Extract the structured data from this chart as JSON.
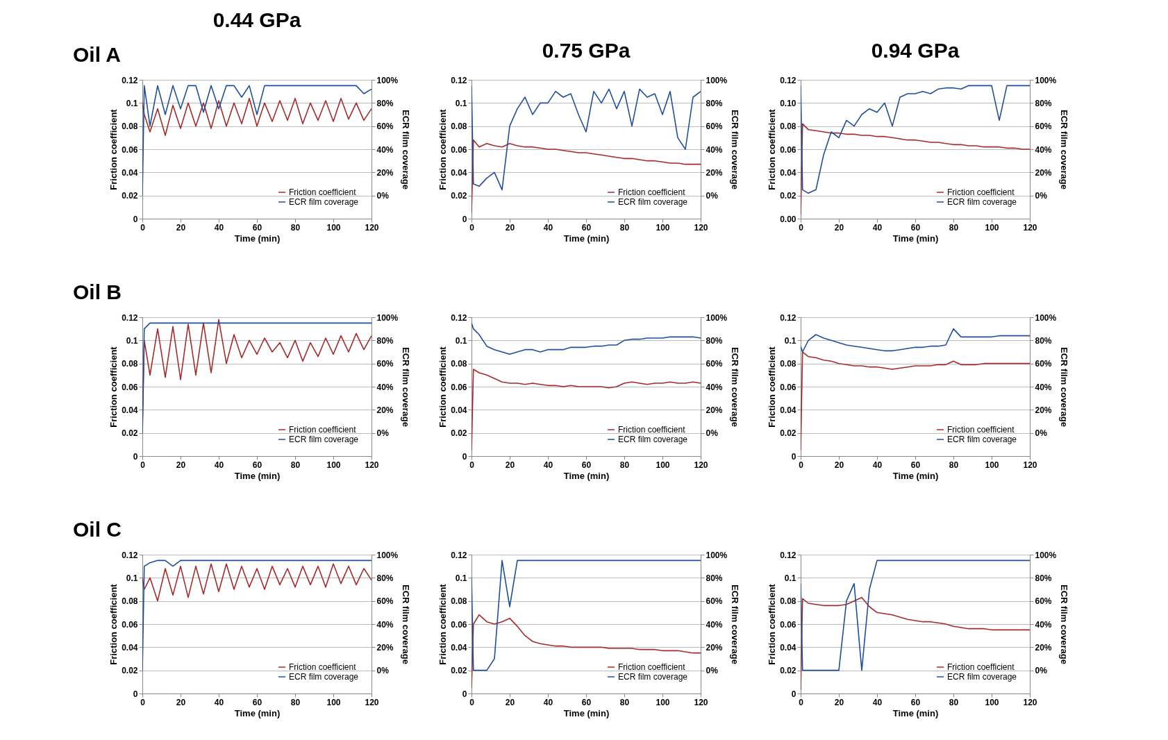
{
  "chart_data": [
    {
      "type": "line",
      "title": "0.44 GPa",
      "annotations": [
        "Oil A"
      ],
      "xlabel": "Time (min)",
      "ylabel": "Friction coefficient",
      "y2label": "ECR film coverage",
      "xlim": [
        0,
        120
      ],
      "xticks": [
        0,
        20,
        40,
        60,
        80,
        100,
        120
      ],
      "ylim": [
        0,
        0.12
      ],
      "yticks": [
        0,
        0.02,
        0.04,
        0.06,
        0.08,
        0.1,
        0.12
      ],
      "y2lim": [
        -20,
        100
      ],
      "y2ticks": [
        {
          "value": 0,
          "label": "0%"
        },
        {
          "value": 20,
          "label": "20%"
        },
        {
          "value": 40,
          "label": "40%"
        },
        {
          "value": 60,
          "label": "60%"
        },
        {
          "value": 80,
          "label": "80%"
        },
        {
          "value": 100,
          "label": "100%"
        }
      ],
      "grid": "y",
      "legend": "bottom right",
      "x": [
        0,
        1,
        4,
        8,
        12,
        16,
        20,
        24,
        28,
        32,
        36,
        40,
        44,
        48,
        52,
        56,
        60,
        64,
        68,
        72,
        76,
        80,
        84,
        88,
        92,
        96,
        100,
        104,
        108,
        112,
        116,
        120
      ],
      "series": [
        {
          "name": "Friction coefficient",
          "color": "#a52a2a",
          "values": [
            0.1,
            0.09,
            0.075,
            0.095,
            0.072,
            0.098,
            0.078,
            0.1,
            0.08,
            0.1,
            0.078,
            0.102,
            0.08,
            0.1,
            0.082,
            0.104,
            0.08,
            0.1,
            0.084,
            0.102,
            0.085,
            0.104,
            0.082,
            0.1,
            0.085,
            0.102,
            0.084,
            0.104,
            0.086,
            0.1,
            0.085,
            0.095
          ]
        },
        {
          "name": "ECR film coverage",
          "color": "#1f4e9c",
          "axis": "y2",
          "values": [
            0,
            95,
            60,
            95,
            70,
            95,
            75,
            95,
            95,
            72,
            95,
            75,
            95,
            95,
            85,
            95,
            70,
            95,
            95,
            95,
            95,
            95,
            95,
            95,
            95,
            95,
            95,
            95,
            95,
            95,
            88,
            92
          ]
        }
      ]
    },
    {
      "type": "line",
      "title": "0.75 GPa",
      "xlabel": "Time (min)",
      "ylabel": "Friction coefficient",
      "y2label": "ECR film coverage",
      "xlim": [
        0,
        120
      ],
      "xticks": [
        0,
        20,
        40,
        60,
        80,
        100,
        120
      ],
      "ylim": [
        0,
        0.12
      ],
      "yticks": [
        0,
        0.02,
        0.04,
        0.06,
        0.08,
        0.1,
        0.12
      ],
      "y2lim": [
        -20,
        100
      ],
      "y2ticks": [
        {
          "value": 0,
          "label": "0%"
        },
        {
          "value": 20,
          "label": "20%"
        },
        {
          "value": 40,
          "label": "40%"
        },
        {
          "value": 60,
          "label": "60%"
        },
        {
          "value": 80,
          "label": "80%"
        },
        {
          "value": 100,
          "label": "100%"
        }
      ],
      "grid": "y",
      "legend": "bottom right",
      "x": [
        0,
        1,
        4,
        8,
        12,
        16,
        20,
        24,
        28,
        32,
        36,
        40,
        44,
        48,
        52,
        56,
        60,
        64,
        68,
        72,
        76,
        80,
        84,
        88,
        92,
        96,
        100,
        104,
        108,
        112,
        116,
        120
      ],
      "series": [
        {
          "name": "Friction coefficient",
          "color": "#a52a2a",
          "values": [
            0.005,
            0.068,
            0.062,
            0.065,
            0.063,
            0.062,
            0.065,
            0.063,
            0.062,
            0.062,
            0.061,
            0.06,
            0.06,
            0.059,
            0.058,
            0.057,
            0.057,
            0.056,
            0.055,
            0.054,
            0.053,
            0.052,
            0.052,
            0.051,
            0.05,
            0.05,
            0.049,
            0.048,
            0.048,
            0.047,
            0.047,
            0.047
          ]
        },
        {
          "name": "ECR film coverage",
          "color": "#1f4e9c",
          "axis": "y2",
          "values": [
            95,
            10,
            8,
            15,
            20,
            5,
            60,
            75,
            85,
            70,
            80,
            80,
            90,
            85,
            88,
            70,
            55,
            90,
            80,
            92,
            75,
            90,
            60,
            92,
            85,
            88,
            70,
            90,
            50,
            40,
            85,
            90
          ]
        }
      ]
    },
    {
      "type": "line",
      "title": "0.94 GPa",
      "xlabel": "Time (min)",
      "ylabel": "Friction coefficient",
      "y2label": "ECR film coverage",
      "xlim": [
        0,
        120
      ],
      "xticks": [
        0,
        20,
        40,
        60,
        80,
        100,
        120
      ],
      "ylim": [
        0,
        0.12
      ],
      "yticks": [
        {
          "value": 0,
          "label": "0.00"
        },
        {
          "value": 0.02,
          "label": "0.02"
        },
        {
          "value": 0.04,
          "label": "0.04"
        },
        {
          "value": 0.06,
          "label": "0.06"
        },
        {
          "value": 0.08,
          "label": "0.08"
        },
        {
          "value": 0.1,
          "label": "0.10"
        },
        {
          "value": 0.12,
          "label": "0.12"
        }
      ],
      "y2lim": [
        -20,
        100
      ],
      "y2ticks": [
        {
          "value": 0,
          "label": "0%"
        },
        {
          "value": 20,
          "label": "20%"
        },
        {
          "value": 40,
          "label": "40%"
        },
        {
          "value": 60,
          "label": "60%"
        },
        {
          "value": 80,
          "label": "80%"
        },
        {
          "value": 100,
          "label": "100%"
        }
      ],
      "grid": "y",
      "legend": "bottom right",
      "x": [
        0,
        1,
        4,
        8,
        12,
        16,
        20,
        24,
        28,
        32,
        36,
        40,
        44,
        48,
        52,
        56,
        60,
        64,
        68,
        72,
        76,
        80,
        84,
        88,
        92,
        96,
        100,
        104,
        108,
        112,
        116,
        120
      ],
      "series": [
        {
          "name": "Friction coefficient",
          "color": "#a52a2a",
          "values": [
            0.003,
            0.082,
            0.077,
            0.076,
            0.075,
            0.074,
            0.074,
            0.073,
            0.073,
            0.072,
            0.072,
            0.071,
            0.071,
            0.07,
            0.069,
            0.068,
            0.068,
            0.067,
            0.066,
            0.066,
            0.065,
            0.064,
            0.064,
            0.063,
            0.063,
            0.062,
            0.062,
            0.062,
            0.061,
            0.061,
            0.06,
            0.06
          ]
        },
        {
          "name": "ECR film coverage",
          "color": "#1f4e9c",
          "axis": "y2",
          "values": [
            95,
            5,
            2,
            5,
            35,
            55,
            50,
            65,
            60,
            70,
            75,
            72,
            80,
            60,
            85,
            88,
            88,
            90,
            88,
            92,
            93,
            93,
            92,
            95,
            95,
            95,
            95,
            65,
            95,
            95,
            95,
            95
          ]
        }
      ]
    },
    {
      "type": "line",
      "annotations": [
        "Oil B"
      ],
      "xlabel": "Time (min)",
      "ylabel": "Friction coefficient",
      "y2label": "ECR film coverage",
      "xlim": [
        0,
        120
      ],
      "xticks": [
        0,
        20,
        40,
        60,
        80,
        100,
        120
      ],
      "ylim": [
        0,
        0.12
      ],
      "yticks": [
        0,
        0.02,
        0.04,
        0.06,
        0.08,
        0.1,
        0.12
      ],
      "y2lim": [
        -20,
        100
      ],
      "y2ticks": [
        {
          "value": 0,
          "label": "0%"
        },
        {
          "value": 20,
          "label": "20%"
        },
        {
          "value": 40,
          "label": "40%"
        },
        {
          "value": 60,
          "label": "60%"
        },
        {
          "value": 80,
          "label": "80%"
        },
        {
          "value": 100,
          "label": "100%"
        }
      ],
      "grid": "y",
      "legend": "bottom right",
      "x": [
        0,
        1,
        4,
        8,
        12,
        16,
        20,
        24,
        28,
        32,
        36,
        40,
        44,
        48,
        52,
        56,
        60,
        64,
        68,
        72,
        76,
        80,
        84,
        88,
        92,
        96,
        100,
        104,
        108,
        112,
        116,
        120
      ],
      "series": [
        {
          "name": "Friction coefficient",
          "color": "#a52a2a",
          "values": [
            0.02,
            0.1,
            0.07,
            0.11,
            0.068,
            0.112,
            0.066,
            0.114,
            0.07,
            0.115,
            0.072,
            0.118,
            0.08,
            0.105,
            0.085,
            0.1,
            0.088,
            0.102,
            0.09,
            0.098,
            0.085,
            0.1,
            0.082,
            0.098,
            0.086,
            0.102,
            0.088,
            0.104,
            0.09,
            0.106,
            0.092,
            0.104
          ]
        },
        {
          "name": "ECR film coverage",
          "color": "#1f4e9c",
          "axis": "y2",
          "values": [
            0,
            90,
            95,
            95,
            95,
            95,
            95,
            95,
            95,
            95,
            95,
            95,
            95,
            95,
            95,
            95,
            95,
            95,
            95,
            95,
            95,
            95,
            95,
            95,
            95,
            95,
            95,
            95,
            95,
            95,
            95,
            95
          ]
        }
      ]
    },
    {
      "type": "line",
      "xlabel": "Time (min)",
      "ylabel": "Friction coefficient",
      "y2label": "ECR film coverage",
      "xlim": [
        0,
        120
      ],
      "xticks": [
        0,
        20,
        40,
        60,
        80,
        100,
        120
      ],
      "ylim": [
        0,
        0.12
      ],
      "yticks": [
        0,
        0.02,
        0.04,
        0.06,
        0.08,
        0.1,
        0.12
      ],
      "y2lim": [
        -20,
        100
      ],
      "y2ticks": [
        {
          "value": 0,
          "label": "0%"
        },
        {
          "value": 20,
          "label": "20%"
        },
        {
          "value": 40,
          "label": "40%"
        },
        {
          "value": 60,
          "label": "60%"
        },
        {
          "value": 80,
          "label": "80%"
        },
        {
          "value": 100,
          "label": "100%"
        }
      ],
      "grid": "y",
      "legend": "bottom right",
      "x": [
        0,
        1,
        4,
        8,
        12,
        16,
        20,
        24,
        28,
        32,
        36,
        40,
        44,
        48,
        52,
        56,
        60,
        64,
        68,
        72,
        76,
        80,
        84,
        88,
        92,
        96,
        100,
        104,
        108,
        112,
        116,
        120
      ],
      "series": [
        {
          "name": "Friction coefficient",
          "color": "#a52a2a",
          "values": [
            0.005,
            0.075,
            0.072,
            0.07,
            0.067,
            0.064,
            0.063,
            0.063,
            0.062,
            0.063,
            0.062,
            0.061,
            0.061,
            0.06,
            0.061,
            0.06,
            0.06,
            0.06,
            0.06,
            0.059,
            0.06,
            0.063,
            0.064,
            0.063,
            0.062,
            0.063,
            0.063,
            0.064,
            0.063,
            0.063,
            0.064,
            0.063
          ]
        },
        {
          "name": "ECR film coverage",
          "color": "#1f4e9c",
          "axis": "y2",
          "values": [
            95,
            90,
            85,
            75,
            72,
            70,
            68,
            70,
            72,
            72,
            70,
            72,
            72,
            72,
            74,
            74,
            74,
            75,
            75,
            76,
            76,
            80,
            81,
            81,
            82,
            82,
            82,
            83,
            83,
            83,
            83,
            82
          ]
        }
      ]
    },
    {
      "type": "line",
      "xlabel": "Time (min)",
      "ylabel": "Friction coefficient",
      "y2label": "ECR film coverage",
      "xlim": [
        0,
        120
      ],
      "xticks": [
        0,
        20,
        40,
        60,
        80,
        100,
        120
      ],
      "ylim": [
        0,
        0.12
      ],
      "yticks": [
        0,
        0.02,
        0.04,
        0.06,
        0.08,
        0.1,
        0.12
      ],
      "y2lim": [
        -20,
        100
      ],
      "y2ticks": [
        {
          "value": 0,
          "label": "0%"
        },
        {
          "value": 20,
          "label": "20%"
        },
        {
          "value": 40,
          "label": "40%"
        },
        {
          "value": 60,
          "label": "60%"
        },
        {
          "value": 80,
          "label": "80%"
        },
        {
          "value": 100,
          "label": "100%"
        }
      ],
      "grid": "y",
      "legend": "bottom right",
      "x": [
        0,
        1,
        4,
        8,
        12,
        16,
        20,
        24,
        28,
        32,
        36,
        40,
        44,
        48,
        52,
        56,
        60,
        64,
        68,
        72,
        76,
        80,
        84,
        88,
        92,
        96,
        100,
        104,
        108,
        112,
        116,
        120
      ],
      "series": [
        {
          "name": "Friction coefficient",
          "color": "#a52a2a",
          "values": [
            0.005,
            0.09,
            0.086,
            0.085,
            0.083,
            0.082,
            0.08,
            0.079,
            0.078,
            0.078,
            0.077,
            0.077,
            0.076,
            0.075,
            0.076,
            0.077,
            0.078,
            0.078,
            0.078,
            0.079,
            0.079,
            0.082,
            0.079,
            0.079,
            0.079,
            0.08,
            0.08,
            0.08,
            0.08,
            0.08,
            0.08,
            0.08
          ]
        },
        {
          "name": "ECR film coverage",
          "color": "#1f4e9c",
          "axis": "y2",
          "values": [
            75,
            70,
            80,
            85,
            82,
            80,
            78,
            76,
            75,
            74,
            73,
            72,
            71,
            71,
            72,
            73,
            74,
            74,
            75,
            75,
            76,
            90,
            83,
            83,
            83,
            83,
            83,
            84,
            84,
            84,
            84,
            84
          ]
        }
      ]
    },
    {
      "type": "line",
      "annotations": [
        "Oil C"
      ],
      "xlabel": "Time (min)",
      "ylabel": "Friction coefficient",
      "y2label": "ECR film coverage",
      "xlim": [
        0,
        120
      ],
      "xticks": [
        0,
        20,
        40,
        60,
        80,
        100,
        120
      ],
      "ylim": [
        0,
        0.12
      ],
      "yticks": [
        0,
        0.02,
        0.04,
        0.06,
        0.08,
        0.1,
        0.12
      ],
      "y2lim": [
        -20,
        100
      ],
      "y2ticks": [
        {
          "value": 0,
          "label": "0%"
        },
        {
          "value": 20,
          "label": "20%"
        },
        {
          "value": 40,
          "label": "40%"
        },
        {
          "value": 60,
          "label": "60%"
        },
        {
          "value": 80,
          "label": "80%"
        },
        {
          "value": 100,
          "label": "100%"
        }
      ],
      "grid": "y",
      "legend": "bottom right",
      "x": [
        0,
        1,
        4,
        8,
        12,
        16,
        20,
        24,
        28,
        32,
        36,
        40,
        44,
        48,
        52,
        56,
        60,
        64,
        68,
        72,
        76,
        80,
        84,
        88,
        92,
        96,
        100,
        104,
        108,
        112,
        116,
        120
      ],
      "series": [
        {
          "name": "Friction coefficient",
          "color": "#a52a2a",
          "values": [
            0.1,
            0.09,
            0.1,
            0.08,
            0.108,
            0.085,
            0.11,
            0.083,
            0.11,
            0.086,
            0.112,
            0.088,
            0.112,
            0.09,
            0.11,
            0.092,
            0.108,
            0.09,
            0.11,
            0.094,
            0.108,
            0.092,
            0.11,
            0.094,
            0.11,
            0.092,
            0.112,
            0.095,
            0.11,
            0.094,
            0.108,
            0.098
          ]
        },
        {
          "name": "ECR film coverage",
          "color": "#1f4e9c",
          "axis": "y2",
          "values": [
            0,
            90,
            93,
            95,
            95,
            90,
            95,
            95,
            95,
            95,
            95,
            95,
            95,
            95,
            95,
            95,
            95,
            95,
            95,
            95,
            95,
            95,
            95,
            95,
            95,
            95,
            95,
            95,
            95,
            95,
            95,
            95
          ]
        }
      ]
    },
    {
      "type": "line",
      "xlabel": "Time (min)",
      "ylabel": "Friction coefficient",
      "y2label": "ECR film coverage",
      "xlim": [
        0,
        120
      ],
      "xticks": [
        0,
        20,
        40,
        60,
        80,
        100,
        120
      ],
      "ylim": [
        0,
        0.12
      ],
      "yticks": [
        0,
        0.02,
        0.04,
        0.06,
        0.08,
        0.1,
        0.12
      ],
      "y2lim": [
        -20,
        100
      ],
      "y2ticks": [
        {
          "value": 0,
          "label": "0%"
        },
        {
          "value": 20,
          "label": "20%"
        },
        {
          "value": 40,
          "label": "40%"
        },
        {
          "value": 60,
          "label": "60%"
        },
        {
          "value": 80,
          "label": "80%"
        },
        {
          "value": 100,
          "label": "100%"
        }
      ],
      "grid": "y",
      "legend": "bottom right",
      "x": [
        0,
        1,
        4,
        8,
        12,
        16,
        20,
        24,
        28,
        32,
        36,
        40,
        44,
        48,
        52,
        56,
        60,
        64,
        68,
        72,
        76,
        80,
        84,
        88,
        92,
        96,
        100,
        104,
        108,
        112,
        116,
        120
      ],
      "series": [
        {
          "name": "Friction coefficient",
          "color": "#a52a2a",
          "values": [
            0.005,
            0.06,
            0.068,
            0.062,
            0.06,
            0.062,
            0.065,
            0.058,
            0.05,
            0.045,
            0.043,
            0.042,
            0.041,
            0.041,
            0.04,
            0.04,
            0.04,
            0.04,
            0.04,
            0.039,
            0.039,
            0.039,
            0.039,
            0.038,
            0.038,
            0.038,
            0.037,
            0.037,
            0.037,
            0.036,
            0.035,
            0.035
          ]
        },
        {
          "name": "ECR film coverage",
          "color": "#1f4e9c",
          "axis": "y2",
          "values": [
            80,
            0,
            0,
            0,
            10,
            95,
            55,
            95,
            95,
            95,
            95,
            95,
            95,
            95,
            95,
            95,
            95,
            95,
            95,
            95,
            95,
            95,
            95,
            95,
            95,
            95,
            95,
            95,
            95,
            95,
            95,
            95
          ]
        }
      ]
    },
    {
      "type": "line",
      "xlabel": "Time (min)",
      "ylabel": "Friction coefficient",
      "y2label": "ECR film coverage",
      "xlim": [
        0,
        120
      ],
      "xticks": [
        0,
        20,
        40,
        60,
        80,
        100,
        120
      ],
      "ylim": [
        0,
        0.12
      ],
      "yticks": [
        0,
        0.02,
        0.04,
        0.06,
        0.08,
        0.1,
        0.12
      ],
      "y2lim": [
        -20,
        100
      ],
      "y2ticks": [
        {
          "value": 0,
          "label": "0%"
        },
        {
          "value": 20,
          "label": "20%"
        },
        {
          "value": 40,
          "label": "40%"
        },
        {
          "value": 60,
          "label": "60%"
        },
        {
          "value": 80,
          "label": "80%"
        },
        {
          "value": 100,
          "label": "100%"
        }
      ],
      "grid": "y",
      "legend": "bottom right",
      "x": [
        0,
        1,
        4,
        8,
        12,
        16,
        20,
        24,
        28,
        32,
        36,
        40,
        44,
        48,
        52,
        56,
        60,
        64,
        68,
        72,
        76,
        80,
        84,
        88,
        92,
        96,
        100,
        104,
        108,
        112,
        116,
        120
      ],
      "series": [
        {
          "name": "Friction coefficient",
          "color": "#a52a2a",
          "values": [
            0.003,
            0.082,
            0.078,
            0.077,
            0.076,
            0.076,
            0.076,
            0.077,
            0.08,
            0.083,
            0.075,
            0.07,
            0.069,
            0.068,
            0.066,
            0.064,
            0.063,
            0.062,
            0.062,
            0.061,
            0.06,
            0.058,
            0.057,
            0.056,
            0.056,
            0.056,
            0.055,
            0.055,
            0.055,
            0.055,
            0.055,
            0.055
          ]
        },
        {
          "name": "ECR film coverage",
          "color": "#1f4e9c",
          "axis": "y2",
          "values": [
            75,
            0,
            0,
            0,
            0,
            0,
            0,
            60,
            75,
            0,
            70,
            95,
            95,
            95,
            95,
            95,
            95,
            95,
            95,
            95,
            95,
            95,
            95,
            95,
            95,
            95,
            95,
            95,
            95,
            95,
            95,
            95
          ]
        }
      ]
    }
  ]
}
